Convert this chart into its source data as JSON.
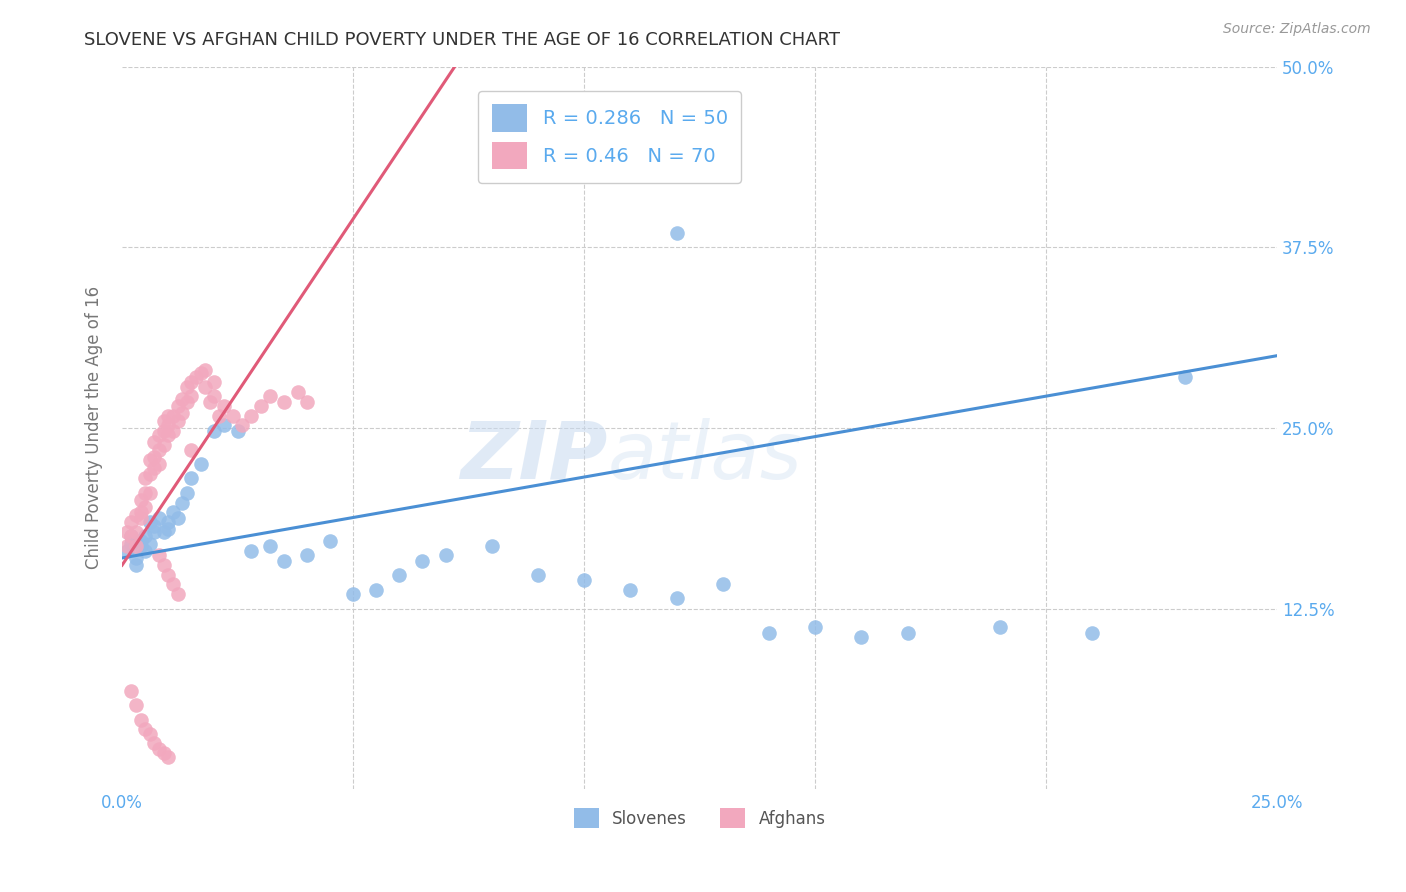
{
  "title": "SLOVENE VS AFGHAN CHILD POVERTY UNDER THE AGE OF 16 CORRELATION CHART",
  "source": "Source: ZipAtlas.com",
  "ylabel_label": "Child Poverty Under the Age of 16",
  "watermark_zip": "ZIP",
  "watermark_atlas": "atlas",
  "legend_slovene_r": 0.286,
  "legend_slovene_n": 50,
  "legend_afghan_r": 0.46,
  "legend_afghan_n": 70,
  "slovene_color": "#92bce8",
  "afghan_color": "#f2a8be",
  "slovene_line_color": "#4a8fd4",
  "afghan_line_color": "#e05a78",
  "background_color": "#ffffff",
  "tick_color": "#5aaaee",
  "label_color": "#777777",
  "xlim": [
    0.0,
    0.25
  ],
  "ylim": [
    0.0,
    0.5
  ],
  "slovene_scatter_x": [
    0.001,
    0.002,
    0.002,
    0.003,
    0.003,
    0.004,
    0.004,
    0.005,
    0.005,
    0.006,
    0.006,
    0.007,
    0.007,
    0.008,
    0.009,
    0.01,
    0.01,
    0.011,
    0.012,
    0.013,
    0.014,
    0.015,
    0.017,
    0.02,
    0.022,
    0.025,
    0.028,
    0.032,
    0.035,
    0.04,
    0.045,
    0.05,
    0.055,
    0.06,
    0.065,
    0.07,
    0.08,
    0.09,
    0.1,
    0.11,
    0.12,
    0.13,
    0.14,
    0.15,
    0.16,
    0.17,
    0.19,
    0.21,
    0.23,
    0.12
  ],
  "slovene_scatter_y": [
    0.165,
    0.17,
    0.175,
    0.16,
    0.155,
    0.168,
    0.172,
    0.165,
    0.175,
    0.17,
    0.185,
    0.178,
    0.182,
    0.188,
    0.178,
    0.185,
    0.18,
    0.192,
    0.188,
    0.198,
    0.205,
    0.215,
    0.225,
    0.248,
    0.252,
    0.248,
    0.165,
    0.168,
    0.158,
    0.162,
    0.172,
    0.135,
    0.138,
    0.148,
    0.158,
    0.162,
    0.168,
    0.148,
    0.145,
    0.138,
    0.132,
    0.142,
    0.108,
    0.112,
    0.105,
    0.108,
    0.112,
    0.108,
    0.285,
    0.385
  ],
  "afghan_scatter_x": [
    0.001,
    0.001,
    0.002,
    0.002,
    0.003,
    0.003,
    0.003,
    0.004,
    0.004,
    0.004,
    0.005,
    0.005,
    0.005,
    0.006,
    0.006,
    0.006,
    0.007,
    0.007,
    0.007,
    0.008,
    0.008,
    0.008,
    0.009,
    0.009,
    0.009,
    0.01,
    0.01,
    0.01,
    0.011,
    0.011,
    0.012,
    0.012,
    0.013,
    0.013,
    0.014,
    0.014,
    0.015,
    0.015,
    0.016,
    0.017,
    0.018,
    0.018,
    0.019,
    0.02,
    0.02,
    0.021,
    0.022,
    0.024,
    0.026,
    0.028,
    0.03,
    0.032,
    0.035,
    0.038,
    0.04,
    0.008,
    0.009,
    0.01,
    0.011,
    0.012,
    0.002,
    0.003,
    0.004,
    0.005,
    0.006,
    0.007,
    0.008,
    0.009,
    0.01,
    0.015
  ],
  "afghan_scatter_y": [
    0.178,
    0.168,
    0.175,
    0.185,
    0.168,
    0.178,
    0.19,
    0.192,
    0.2,
    0.188,
    0.195,
    0.205,
    0.215,
    0.205,
    0.218,
    0.228,
    0.222,
    0.23,
    0.24,
    0.225,
    0.235,
    0.245,
    0.238,
    0.248,
    0.255,
    0.245,
    0.252,
    0.258,
    0.248,
    0.258,
    0.255,
    0.265,
    0.26,
    0.27,
    0.268,
    0.278,
    0.272,
    0.282,
    0.285,
    0.288,
    0.29,
    0.278,
    0.268,
    0.282,
    0.272,
    0.258,
    0.265,
    0.258,
    0.252,
    0.258,
    0.265,
    0.272,
    0.268,
    0.275,
    0.268,
    0.162,
    0.155,
    0.148,
    0.142,
    0.135,
    0.068,
    0.058,
    0.048,
    0.042,
    0.038,
    0.032,
    0.028,
    0.025,
    0.022,
    0.235
  ],
  "slovene_line": {
    "x0": 0.0,
    "x1": 0.25,
    "y0": 0.16,
    "y1": 0.3
  },
  "afghan_line": {
    "x0": 0.0,
    "x1": 0.072,
    "y0": 0.155,
    "y1": 0.5
  }
}
